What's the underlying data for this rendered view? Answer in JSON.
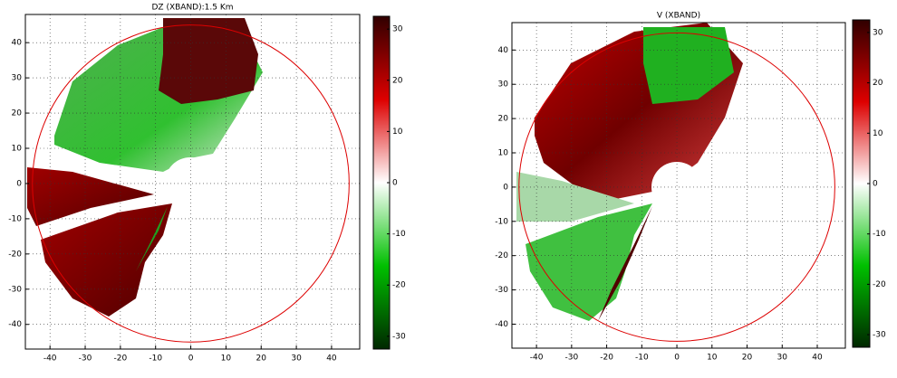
{
  "chart_data": [
    {
      "type": "radar",
      "title": "DZ (XBAND):1.5 Km",
      "xlim": [
        -47,
        48
      ],
      "ylim": [
        -47,
        48
      ],
      "xticks": [
        -40,
        -30,
        -20,
        -10,
        0,
        10,
        20,
        30,
        40
      ],
      "yticks": [
        -40,
        -30,
        -20,
        -10,
        0,
        10,
        20,
        30,
        40
      ],
      "grid": true,
      "ring_radius": 45,
      "ring_color": "#dd0000",
      "colorbar": {
        "lim": [
          -32.5,
          32.5
        ],
        "ticks": [
          -30,
          -20,
          -10,
          0,
          10,
          20,
          30
        ],
        "colors": [
          "#002800",
          "#00c000",
          "#ffffff",
          "#dd0000",
          "#300000"
        ]
      }
    },
    {
      "type": "radar",
      "title": "V (XBAND)",
      "xlim": [
        -47,
        48
      ],
      "ylim": [
        -47,
        48
      ],
      "xticks": [
        -40,
        -30,
        -20,
        -10,
        0,
        10,
        20,
        30,
        40
      ],
      "yticks": [
        -40,
        -30,
        -20,
        -10,
        0,
        10,
        20,
        30,
        40
      ],
      "grid": true,
      "ring_radius": 45,
      "ring_color": "#dd0000",
      "colorbar": {
        "lim": [
          -32.5,
          32.5
        ],
        "ticks": [
          -30,
          -20,
          -10,
          0,
          10,
          20,
          30
        ],
        "colors": [
          "#002800",
          "#00c000",
          "#ffffff",
          "#dd0000",
          "#300000"
        ]
      }
    }
  ]
}
